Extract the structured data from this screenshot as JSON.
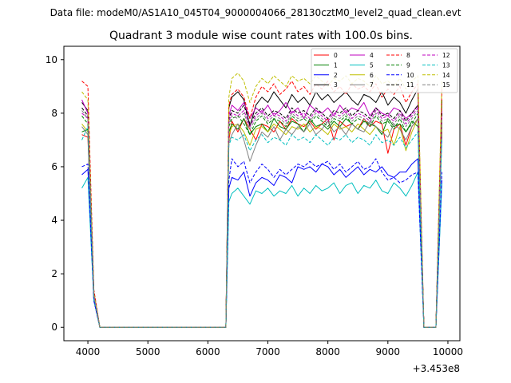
{
  "chart_data": {
    "type": "line",
    "suptitle": "Data file: modeM0/AS1A10_045T04_9000004066_28130cztM0_level2_quad_clean.evt",
    "title": "Quadrant 3 module wise count rates with 100.0s bins.",
    "xlabel": "",
    "ylabel": "",
    "xlim": [
      3600,
      10200
    ],
    "ylim": [
      -0.5,
      10.5
    ],
    "x_offset_label": "+3.453e8",
    "xticks": [
      4000,
      5000,
      6000,
      7000,
      8000,
      9000,
      10000
    ],
    "yticks": [
      0,
      2,
      4,
      6,
      8,
      10
    ],
    "grid": false,
    "legend": {
      "location": "top-right",
      "columns": 4
    },
    "x": [
      3900,
      4000,
      4100,
      4200,
      4300,
      4400,
      4500,
      4600,
      4700,
      4800,
      4900,
      5000,
      5100,
      5200,
      5300,
      5400,
      5500,
      5600,
      5700,
      5800,
      5900,
      6000,
      6100,
      6200,
      6300,
      6350,
      6400,
      6500,
      6600,
      6700,
      6800,
      6900,
      7000,
      7100,
      7200,
      7300,
      7400,
      7500,
      7600,
      7700,
      7800,
      7900,
      8000,
      8100,
      8200,
      8300,
      8400,
      8500,
      8600,
      8700,
      8800,
      8900,
      9000,
      9100,
      9200,
      9300,
      9400,
      9500,
      9600,
      9700,
      9800,
      9900
    ],
    "series": [
      {
        "name": "0",
        "color": "#ff0000",
        "dash": "solid",
        "values": [
          7.2,
          7.1,
          1.0,
          0,
          0,
          0,
          0,
          0,
          0,
          0,
          0,
          0,
          0,
          0,
          0,
          0,
          0,
          0,
          0,
          0,
          0,
          0,
          0,
          0,
          0,
          7.0,
          7.7,
          7.3,
          7.8,
          7.4,
          7.0,
          7.6,
          7.5,
          7.3,
          7.7,
          7.4,
          7.8,
          7.6,
          7.5,
          7.7,
          7.4,
          7.6,
          7.8,
          7.0,
          7.7,
          7.5,
          7.6,
          7.4,
          7.8,
          7.5,
          7.7,
          7.6,
          6.5,
          7.4,
          7.6,
          6.8,
          7.5,
          7.8,
          0,
          0,
          0,
          7.3
        ]
      },
      {
        "name": "1",
        "color": "#008000",
        "dash": "solid",
        "values": [
          7.3,
          7.4,
          1.2,
          0,
          0,
          0,
          0,
          0,
          0,
          0,
          0,
          0,
          0,
          0,
          0,
          0,
          0,
          0,
          0,
          0,
          0,
          0,
          0,
          0,
          0,
          7.3,
          7.6,
          7.4,
          7.8,
          7.2,
          7.5,
          7.6,
          7.3,
          7.8,
          7.5,
          7.4,
          7.7,
          7.6,
          7.3,
          7.8,
          7.5,
          7.6,
          7.4,
          7.7,
          7.5,
          7.8,
          7.6,
          7.4,
          7.7,
          7.6,
          7.5,
          7.2,
          7.8,
          7.5,
          7.6,
          7.3,
          7.7,
          7.5,
          0,
          0,
          0,
          7.6
        ]
      },
      {
        "name": "2",
        "color": "#0000ff",
        "dash": "solid",
        "values": [
          5.7,
          5.9,
          1.0,
          0,
          0,
          0,
          0,
          0,
          0,
          0,
          0,
          0,
          0,
          0,
          0,
          0,
          0,
          0,
          0,
          0,
          0,
          0,
          0,
          0,
          0,
          5.2,
          5.6,
          5.5,
          5.8,
          4.9,
          5.4,
          5.6,
          5.5,
          5.3,
          5.7,
          5.6,
          5.4,
          6.0,
          5.9,
          6.0,
          5.8,
          6.1,
          6.0,
          5.7,
          5.9,
          5.6,
          5.8,
          6.0,
          5.7,
          5.9,
          5.8,
          6.0,
          5.7,
          5.6,
          5.8,
          5.8,
          6.1,
          6.3,
          0,
          0,
          0,
          5.5
        ]
      },
      {
        "name": "3",
        "color": "#000000",
        "dash": "solid",
        "values": [
          8.4,
          8.1,
          1.3,
          0,
          0,
          0,
          0,
          0,
          0,
          0,
          0,
          0,
          0,
          0,
          0,
          0,
          0,
          0,
          0,
          0,
          0,
          0,
          0,
          0,
          0,
          8.2,
          8.6,
          8.8,
          8.5,
          7.5,
          8.3,
          8.6,
          8.4,
          8.8,
          8.5,
          8.2,
          8.7,
          8.4,
          8.6,
          8.3,
          8.8,
          8.5,
          8.7,
          8.4,
          8.6,
          8.8,
          8.5,
          8.3,
          8.7,
          8.6,
          8.4,
          8.8,
          8.3,
          8.6,
          8.4,
          8.0,
          8.5,
          8.9,
          0,
          0,
          0,
          8.5
        ]
      },
      {
        "name": "4",
        "color": "#bf00bf",
        "dash": "solid",
        "values": [
          8.5,
          8.0,
          1.2,
          0,
          0,
          0,
          0,
          0,
          0,
          0,
          0,
          0,
          0,
          0,
          0,
          0,
          0,
          0,
          0,
          0,
          0,
          0,
          0,
          0,
          0,
          7.9,
          8.3,
          8.1,
          8.4,
          7.8,
          8.2,
          8.0,
          8.3,
          7.9,
          8.1,
          8.4,
          8.0,
          8.2,
          7.8,
          8.3,
          8.1,
          8.0,
          8.2,
          7.9,
          8.3,
          8.0,
          8.2,
          8.1,
          8.4,
          7.9,
          8.2,
          8.0,
          7.9,
          8.2,
          8.1,
          7.8,
          8.0,
          8.3,
          0,
          0,
          0,
          8.1
        ]
      },
      {
        "name": "5",
        "color": "#00bfbf",
        "dash": "solid",
        "values": [
          5.2,
          5.6,
          1.0,
          0,
          0,
          0,
          0,
          0,
          0,
          0,
          0,
          0,
          0,
          0,
          0,
          0,
          0,
          0,
          0,
          0,
          0,
          0,
          0,
          0,
          0,
          4.7,
          5.0,
          5.2,
          4.9,
          4.6,
          5.1,
          5.0,
          5.2,
          4.9,
          5.1,
          5.0,
          5.3,
          4.9,
          5.2,
          5.0,
          5.3,
          5.1,
          5.2,
          5.4,
          5.0,
          5.3,
          5.4,
          5.0,
          5.3,
          5.2,
          5.5,
          5.1,
          5.0,
          5.4,
          5.2,
          4.9,
          5.3,
          5.8,
          0,
          0,
          0,
          5.4
        ]
      },
      {
        "name": "6",
        "color": "#bfbf00",
        "dash": "solid",
        "values": [
          7.6,
          7.3,
          1.1,
          0,
          0,
          0,
          0,
          0,
          0,
          0,
          0,
          0,
          0,
          0,
          0,
          0,
          0,
          0,
          0,
          0,
          0,
          0,
          0,
          0,
          0,
          7.2,
          7.5,
          7.6,
          7.3,
          6.8,
          7.4,
          7.5,
          7.3,
          7.6,
          7.4,
          7.2,
          7.5,
          7.4,
          7.6,
          7.3,
          7.5,
          7.4,
          7.2,
          7.6,
          7.4,
          7.5,
          7.3,
          7.6,
          7.4,
          7.2,
          7.5,
          7.3,
          7.4,
          6.8,
          7.5,
          6.6,
          7.3,
          7.8,
          0,
          0,
          0,
          7.4
        ]
      },
      {
        "name": "7",
        "color": "#808080",
        "dash": "solid",
        "values": [
          7.5,
          7.2,
          1.1,
          0,
          0,
          0,
          0,
          0,
          0,
          0,
          0,
          0,
          0,
          0,
          0,
          0,
          0,
          0,
          0,
          0,
          0,
          0,
          0,
          0,
          0,
          6.9,
          7.2,
          7.6,
          7.0,
          6.2,
          6.8,
          7.3,
          7.1,
          7.5,
          7.0,
          7.4,
          7.2,
          7.5,
          7.3,
          7.6,
          7.2,
          7.4,
          7.7,
          7.3,
          7.5,
          7.2,
          7.6,
          7.4,
          7.3,
          7.7,
          7.5,
          7.3,
          7.1,
          7.6,
          7.4,
          7.0,
          7.5,
          7.8,
          0,
          0,
          0,
          7.2
        ]
      },
      {
        "name": "8",
        "color": "#ff0000",
        "dash": "dashed",
        "values": [
          9.2,
          9.0,
          1.4,
          0,
          0,
          0,
          0,
          0,
          0,
          0,
          0,
          0,
          0,
          0,
          0,
          0,
          0,
          0,
          0,
          0,
          0,
          0,
          0,
          0,
          0,
          8.3,
          8.7,
          8.9,
          8.6,
          7.8,
          8.6,
          9.0,
          8.8,
          9.1,
          8.7,
          8.9,
          9.2,
          8.8,
          9.0,
          8.7,
          9.1,
          8.9,
          9.2,
          8.8,
          9.0,
          8.7,
          9.1,
          8.9,
          9.0,
          8.8,
          9.1,
          8.6,
          8.9,
          8.7,
          9.0,
          8.4,
          8.8,
          9.1,
          0,
          0,
          0,
          8.9
        ]
      },
      {
        "name": "9",
        "color": "#008000",
        "dash": "dashed",
        "values": [
          7.9,
          7.6,
          1.2,
          0,
          0,
          0,
          0,
          0,
          0,
          0,
          0,
          0,
          0,
          0,
          0,
          0,
          0,
          0,
          0,
          0,
          0,
          0,
          0,
          0,
          0,
          7.5,
          7.8,
          7.9,
          7.6,
          7.2,
          7.7,
          7.9,
          7.6,
          7.8,
          7.7,
          7.5,
          7.9,
          7.7,
          7.8,
          7.6,
          7.9,
          7.7,
          7.5,
          7.8,
          7.7,
          7.9,
          7.6,
          7.8,
          7.7,
          7.5,
          7.9,
          7.6,
          7.7,
          7.4,
          7.8,
          7.3,
          7.6,
          8.0,
          0,
          0,
          0,
          7.7
        ]
      },
      {
        "name": "10",
        "color": "#0000ff",
        "dash": "dashed",
        "values": [
          6.0,
          6.1,
          1.0,
          0,
          0,
          0,
          0,
          0,
          0,
          0,
          0,
          0,
          0,
          0,
          0,
          0,
          0,
          0,
          0,
          0,
          0,
          0,
          0,
          0,
          0,
          5.5,
          6.3,
          6.0,
          6.2,
          5.4,
          5.8,
          6.1,
          5.9,
          5.6,
          5.9,
          5.7,
          5.9,
          6.1,
          6.0,
          6.2,
          6.0,
          6.1,
          6.2,
          5.9,
          6.1,
          5.8,
          6.0,
          6.2,
          5.9,
          6.0,
          6.3,
          5.8,
          5.5,
          5.6,
          5.4,
          5.5,
          5.7,
          5.8,
          0,
          0,
          0,
          5.8
        ]
      },
      {
        "name": "11",
        "color": "#000000",
        "dash": "dashed",
        "values": [
          8.2,
          7.9,
          1.2,
          0,
          0,
          0,
          0,
          0,
          0,
          0,
          0,
          0,
          0,
          0,
          0,
          0,
          0,
          0,
          0,
          0,
          0,
          0,
          0,
          0,
          0,
          7.8,
          8.1,
          8.0,
          8.3,
          7.6,
          8.0,
          8.2,
          7.9,
          8.1,
          8.0,
          7.8,
          8.2,
          8.0,
          8.1,
          7.9,
          8.2,
          8.0,
          7.8,
          8.1,
          8.0,
          8.2,
          7.9,
          8.1,
          8.0,
          7.8,
          8.2,
          7.9,
          8.0,
          7.8,
          8.1,
          7.7,
          8.0,
          8.3,
          0,
          0,
          0,
          8.0
        ]
      },
      {
        "name": "12",
        "color": "#bf00bf",
        "dash": "dashed",
        "values": [
          8.0,
          7.8,
          1.2,
          0,
          0,
          0,
          0,
          0,
          0,
          0,
          0,
          0,
          0,
          0,
          0,
          0,
          0,
          0,
          0,
          0,
          0,
          0,
          0,
          0,
          0,
          7.7,
          8.0,
          7.9,
          8.1,
          7.5,
          7.9,
          8.1,
          7.8,
          8.0,
          7.9,
          7.7,
          8.1,
          7.9,
          8.0,
          7.8,
          8.1,
          7.9,
          7.7,
          8.0,
          7.9,
          8.1,
          7.8,
          8.0,
          7.9,
          7.7,
          8.1,
          7.8,
          7.9,
          7.7,
          8.0,
          7.6,
          7.9,
          8.2,
          0,
          0,
          0,
          7.9
        ]
      },
      {
        "name": "13",
        "color": "#00bfbf",
        "dash": "dashed",
        "values": [
          7.0,
          7.5,
          1.1,
          0,
          0,
          0,
          0,
          0,
          0,
          0,
          0,
          0,
          0,
          0,
          0,
          0,
          0,
          0,
          0,
          0,
          0,
          0,
          0,
          0,
          0,
          6.8,
          7.1,
          7.0,
          7.2,
          6.6,
          7.0,
          7.2,
          6.9,
          7.1,
          7.0,
          6.8,
          7.2,
          7.0,
          7.1,
          6.9,
          7.2,
          7.0,
          6.8,
          7.1,
          7.0,
          7.2,
          6.9,
          7.1,
          7.0,
          6.8,
          7.2,
          6.9,
          7.0,
          6.8,
          7.1,
          6.7,
          7.0,
          7.3,
          0,
          0,
          0,
          7.0
        ]
      },
      {
        "name": "14",
        "color": "#bfbf00",
        "dash": "dashed",
        "values": [
          8.8,
          8.5,
          1.3,
          0,
          0,
          0,
          0,
          0,
          0,
          0,
          0,
          0,
          0,
          0,
          0,
          0,
          0,
          0,
          0,
          0,
          0,
          0,
          0,
          0,
          0,
          8.6,
          9.3,
          9.5,
          9.2,
          8.4,
          9.0,
          9.3,
          9.1,
          9.4,
          9.2,
          9.0,
          9.4,
          9.2,
          9.3,
          9.1,
          9.4,
          9.2,
          9.0,
          9.3,
          9.2,
          9.4,
          9.1,
          9.3,
          9.2,
          9.0,
          9.4,
          9.1,
          9.2,
          9.0,
          9.3,
          8.9,
          9.2,
          9.4,
          0,
          0,
          0,
          9.2
        ]
      },
      {
        "name": "15",
        "color": "#808080",
        "dash": "dashed",
        "values": [
          8.1,
          7.8,
          1.2,
          0,
          0,
          0,
          0,
          0,
          0,
          0,
          0,
          0,
          0,
          0,
          0,
          0,
          0,
          0,
          0,
          0,
          0,
          0,
          0,
          0,
          0,
          7.6,
          7.9,
          7.8,
          8.0,
          7.4,
          7.8,
          8.0,
          7.7,
          7.9,
          7.8,
          7.6,
          8.0,
          7.8,
          7.9,
          7.7,
          8.0,
          7.8,
          7.6,
          7.9,
          7.8,
          8.0,
          7.7,
          7.9,
          7.8,
          7.6,
          8.0,
          7.7,
          7.8,
          7.6,
          7.9,
          7.5,
          7.8,
          8.1,
          0,
          0,
          0,
          7.8
        ]
      }
    ]
  }
}
